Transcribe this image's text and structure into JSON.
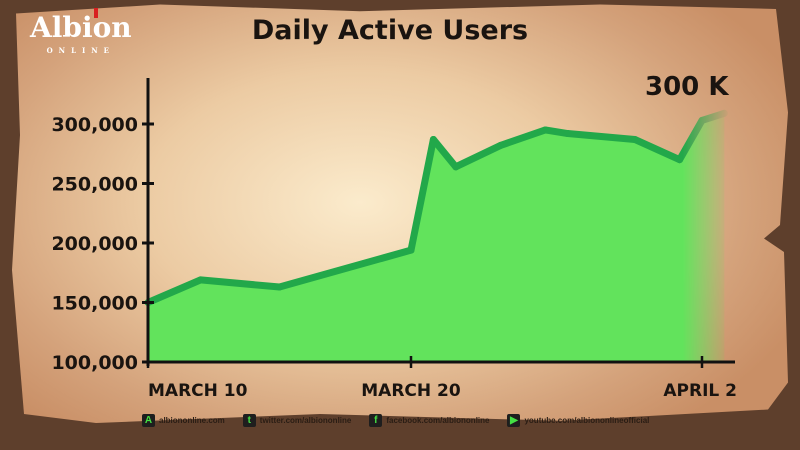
{
  "logo": {
    "text": "Albion",
    "subtext": "ONLINE"
  },
  "chart_data": {
    "type": "area",
    "title": "Daily Active Users",
    "annotation": "300 K",
    "x": [
      "Mar 10",
      "Mar 12",
      "Mar 15",
      "Mar 20",
      "Mar 21",
      "Mar 22",
      "Mar 24",
      "Mar 26",
      "Mar 27",
      "Mar 30",
      "Apr 1",
      "Apr 2",
      "Apr 3"
    ],
    "values": [
      150000,
      169000,
      163000,
      194000,
      287000,
      264000,
      282000,
      295000,
      292000,
      287000,
      270000,
      303000,
      309000
    ],
    "ylim": [
      100000,
      310000
    ],
    "yticks": [
      100000,
      150000,
      200000,
      250000,
      300000
    ],
    "ytick_labels": [
      "100,000",
      "150,000",
      "200,000",
      "250,000",
      "300,000"
    ],
    "xticks": [
      "Mar 10",
      "Mar 20",
      "Apr 2"
    ],
    "xtick_labels": [
      "MARCH 10",
      "MARCH 20",
      "APRIL 2"
    ],
    "grid": false,
    "colors": {
      "fill": "#62e35c",
      "line": "#22a84a",
      "axis": "#111111"
    }
  },
  "footer": [
    {
      "icon": "albion-icon",
      "glyph": "A",
      "text": "albiononline.com"
    },
    {
      "icon": "twitter-icon",
      "glyph": "t",
      "text": "twitter.com/albiononline"
    },
    {
      "icon": "facebook-icon",
      "glyph": "f",
      "text": "facebook.com/albiononline"
    },
    {
      "icon": "youtube-icon",
      "glyph": "▶",
      "text": "youtube.com/albiononlineofficial"
    }
  ]
}
